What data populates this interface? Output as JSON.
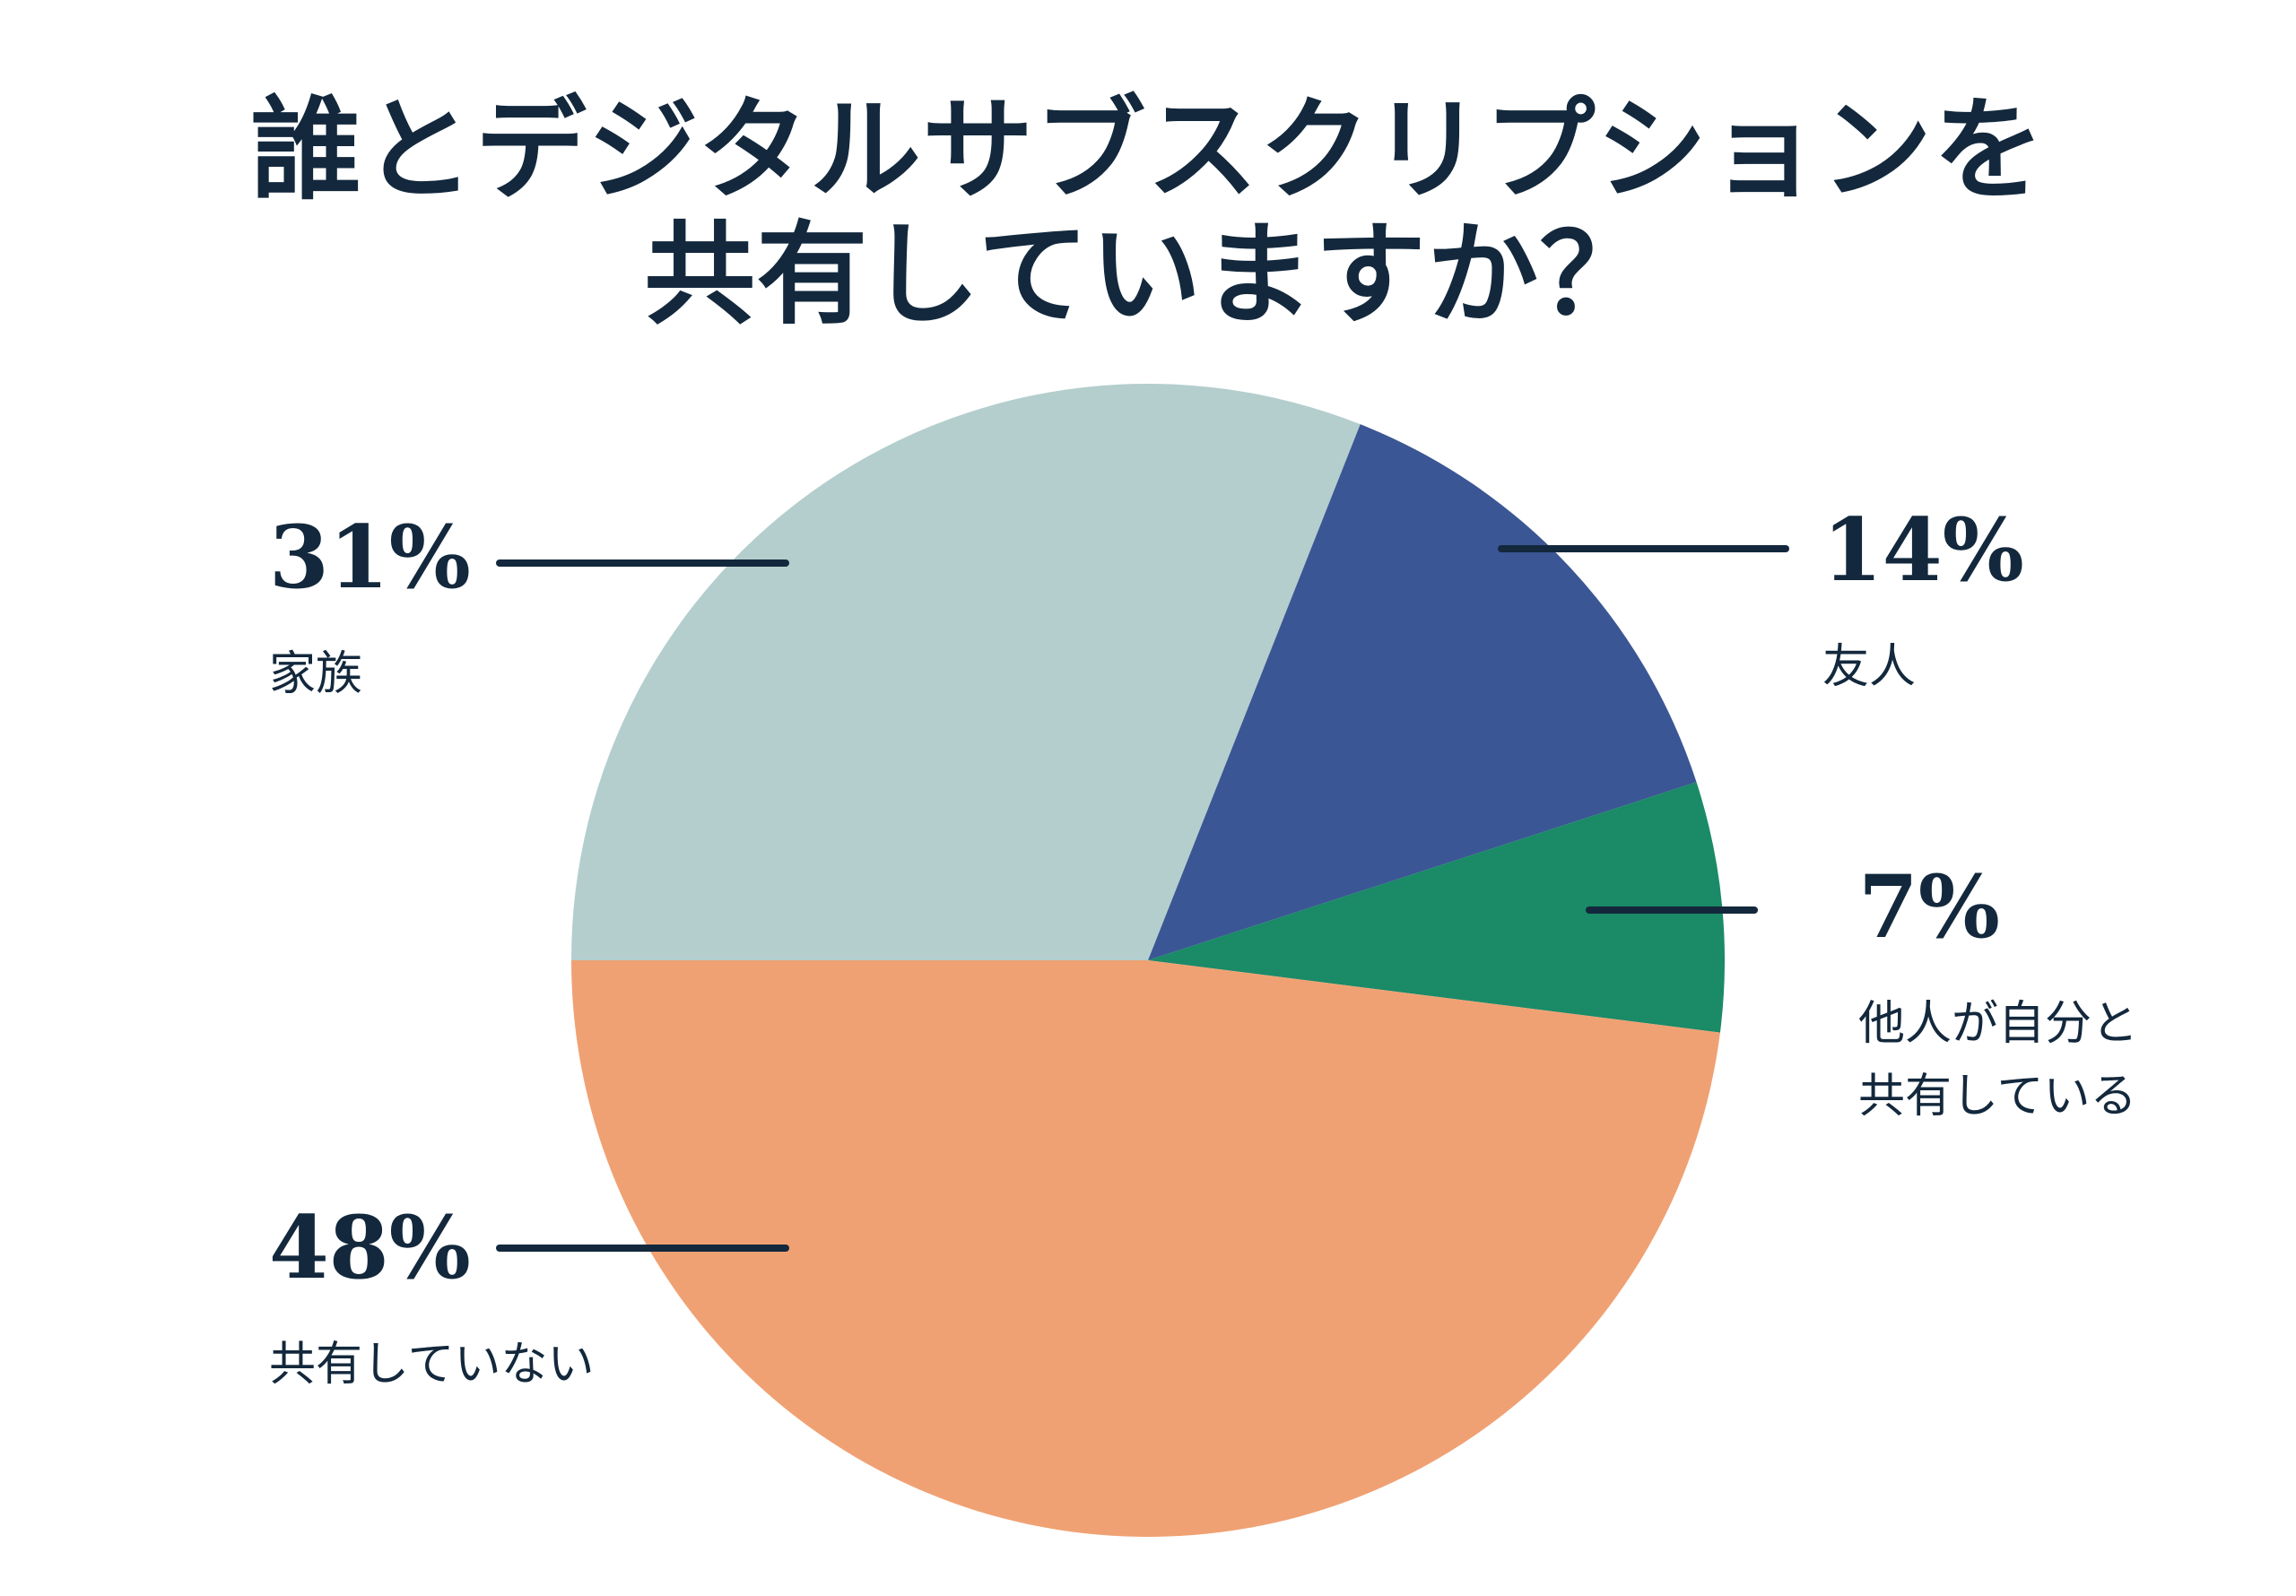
{
  "page": {
    "background_color": "#ffffff",
    "text_color": "#13283c"
  },
  "chart_data": {
    "type": "pie",
    "title": "誰とデジタルサブスクリプションを共有していますか？",
    "title_lines": [
      "誰とデジタルサブスクリプションを",
      "共有していますか？"
    ],
    "slices": [
      {
        "label": "家族",
        "value": 31,
        "pct_label": "31%",
        "color": "#b4cecd"
      },
      {
        "label": "友人",
        "value": 14,
        "pct_label": "14%",
        "color": "#3b5694"
      },
      {
        "label": "他人が自分と共有している",
        "value": 7,
        "pct_label": "7%",
        "color": "#1a8a67"
      },
      {
        "label": "共有していない",
        "value": 48,
        "pct_label": "48%",
        "color": "#f0a173"
      }
    ],
    "start_angle_clockwise_from_top_deg": 270,
    "legend_position": "callouts-with-leader-lines",
    "grid": false
  },
  "callouts": [
    {
      "pct": "31%",
      "lines": [
        "家族"
      ]
    },
    {
      "pct": "14%",
      "lines": [
        "友人"
      ]
    },
    {
      "pct": "7%",
      "lines": [
        "他人が自分と",
        "共有している"
      ]
    },
    {
      "pct": "48%",
      "lines": [
        "共有していない"
      ]
    }
  ]
}
